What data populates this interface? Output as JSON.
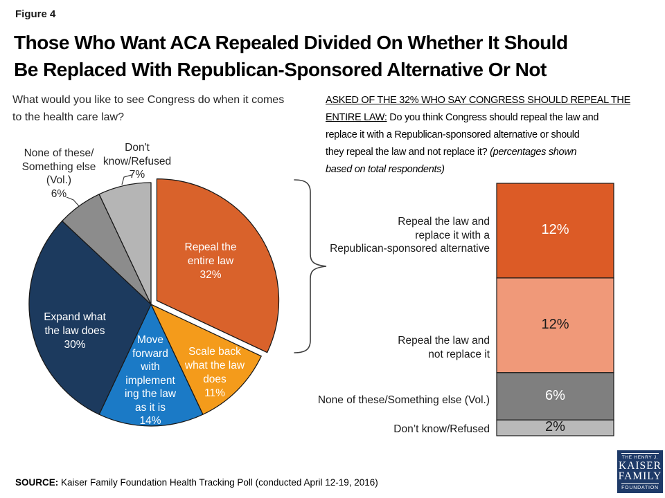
{
  "figure_label": "Figure 4",
  "title_line1": "Those Who Want ACA Repealed Divided On Whether It Should",
  "title_line2": "Be Replaced With Republican-Sponsored Alternative Or Not",
  "left_question": {
    "line1": "What would you like to see Congress do when it comes",
    "line2": "to the health care law?"
  },
  "right_question": {
    "line1_underlined": "ASKED OF THE 32% WHO SAY CONGRESS SHOULD REPEAL THE",
    "line2_underlined": "ENTIRE LAW:",
    "line2_normal": " Do you think Congress should repeal the law and",
    "line3_normal": "replace it with a Republican-sponsored alternative or should",
    "line4_normal": "they repeal the law and not replace it? ",
    "line4_italic": "(percentages shown",
    "line5_italic": "based on total respondents)"
  },
  "source": {
    "prefix": "SOURCE:",
    "text": " Kaiser Family Foundation Health Tracking Poll (conducted April 12-19, 2016)"
  },
  "logo": {
    "line1": "THE HENRY J.",
    "line2": "KAISER",
    "line3": "FAMILY",
    "line4": "FOUNDATION",
    "bg_color": "#1E3A68"
  },
  "chart_data": [
    {
      "type": "pie",
      "title": "What would you like to see Congress do when it comes to the health care law?",
      "direction": "clockwise",
      "start_angle_deg": 0,
      "slices": [
        {
          "id": "repeal-entire-law",
          "label": "Repeal the entire law",
          "value": 32,
          "color": "#D9622B",
          "exploded": true,
          "label_display": "Repeal the\nentire law\n32%"
        },
        {
          "id": "scale-back",
          "label": "Scale back what the law does",
          "value": 11,
          "color": "#F49B1B",
          "exploded": false,
          "label_display": "Scale back\nwhat the law\ndoes\n11%"
        },
        {
          "id": "move-forward",
          "label": "Move forward with implementing the law as it is",
          "value": 14,
          "color": "#1B7AC6",
          "exploded": false,
          "label_display": "Move\nforward\nwith\nimplement\ning the law\nas it is\n14%"
        },
        {
          "id": "expand-law",
          "label": "Expand what the law does",
          "value": 30,
          "color": "#1C3A5E",
          "exploded": false,
          "label_display": "Expand what\nthe law does\n30%"
        },
        {
          "id": "none-something-else",
          "label": "None of these/Something else (Vol.)",
          "value": 6,
          "color": "#8C8C8C",
          "exploded": false,
          "label_display": "None of these/\nSomething else\n(Vol.)\n6%"
        },
        {
          "id": "dont-know",
          "label": "Don't know/Refused",
          "value": 7,
          "color": "#B5B5B5",
          "exploded": false,
          "label_display": "Don't\nknow/Refused\n7%"
        }
      ]
    },
    {
      "type": "bar",
      "subtype": "single-stacked-column",
      "title": "ASKED OF THE 32% WHO SAY CONGRESS SHOULD REPEAL THE ENTIRE LAW (percentages shown based on total respondents)",
      "total_of_stack": 32,
      "segments": [
        {
          "id": "repeal-replace",
          "label": "Repeal the law and\nreplace it with a\nRepublican-sponsored alternative",
          "value": 12,
          "value_display": "12%",
          "color": "#DC5B26"
        },
        {
          "id": "repeal-not-replace",
          "label": "Repeal the law and\nnot replace it",
          "value": 12,
          "value_display": "12%",
          "color": "#F09979"
        },
        {
          "id": "none-something-else",
          "label": "None of these/Something else (Vol.)",
          "value": 6,
          "value_display": "6%",
          "color": "#7F7F7F"
        },
        {
          "id": "dont-know",
          "label": "Don’t know/Refused",
          "value": 2,
          "value_display": "2%",
          "color": "#B9B9B9"
        }
      ]
    }
  ]
}
